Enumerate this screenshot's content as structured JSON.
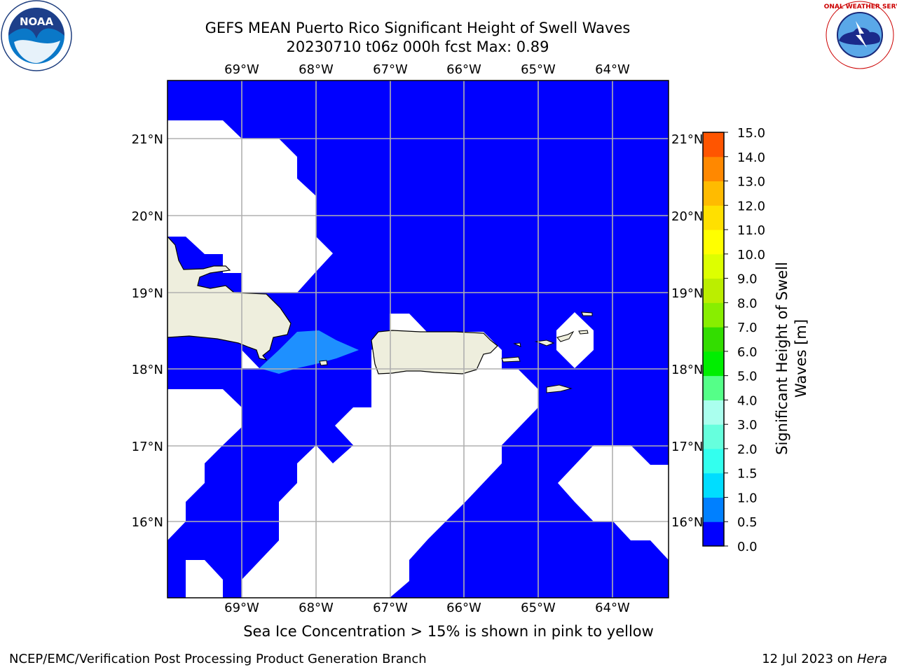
{
  "title": {
    "line1": "GEFS MEAN Puerto Rico Significant Height of Swell Waves",
    "line2": "20230710 t06z 000h fcst   Max: 0.89"
  },
  "map": {
    "lon_labels": [
      "69°W",
      "68°W",
      "67°W",
      "66°W",
      "65°W",
      "64°W"
    ],
    "lat_labels": [
      "21°N",
      "20°N",
      "19°N",
      "18°N",
      "17°N",
      "16°N"
    ],
    "colors": {
      "water_low": "#0000ff",
      "water_mid": "#1e90ff",
      "land": "#eeeedd",
      "grid": "#b0b0b0"
    }
  },
  "colorbar": {
    "label": "Significant Height of Swell Waves [m]",
    "ticks": [
      "15.0",
      "14.0",
      "13.0",
      "12.0",
      "11.0",
      "10.0",
      "9.0",
      "8.0",
      "7.0",
      "6.0",
      "5.0",
      "4.0",
      "3.0",
      "2.0",
      "1.5",
      "1.0",
      "0.5",
      "0.0"
    ],
    "colors": [
      "#0000ff",
      "#0080ff",
      "#00ddff",
      "#33ffee",
      "#66ffdd",
      "#aaffee",
      "#55ff88",
      "#00ee00",
      "#33dd00",
      "#88ee00",
      "#bbee00",
      "#ddff00",
      "#ffff00",
      "#ffe000",
      "#ffbb00",
      "#ff8800",
      "#ff5500",
      "#ff2200",
      "#ff0000"
    ]
  },
  "logos": {
    "noaa_text": "NOAA",
    "nws_text": "NATIONAL WEATHER SERVICE"
  },
  "note": "Sea Ice Concentration > 15% is shown in pink to yellow",
  "footer": {
    "left": "NCEP/EMC/Verification Post Processing Product Generation Branch",
    "date": "12 Jul 2023 on ",
    "host": "Hera"
  }
}
